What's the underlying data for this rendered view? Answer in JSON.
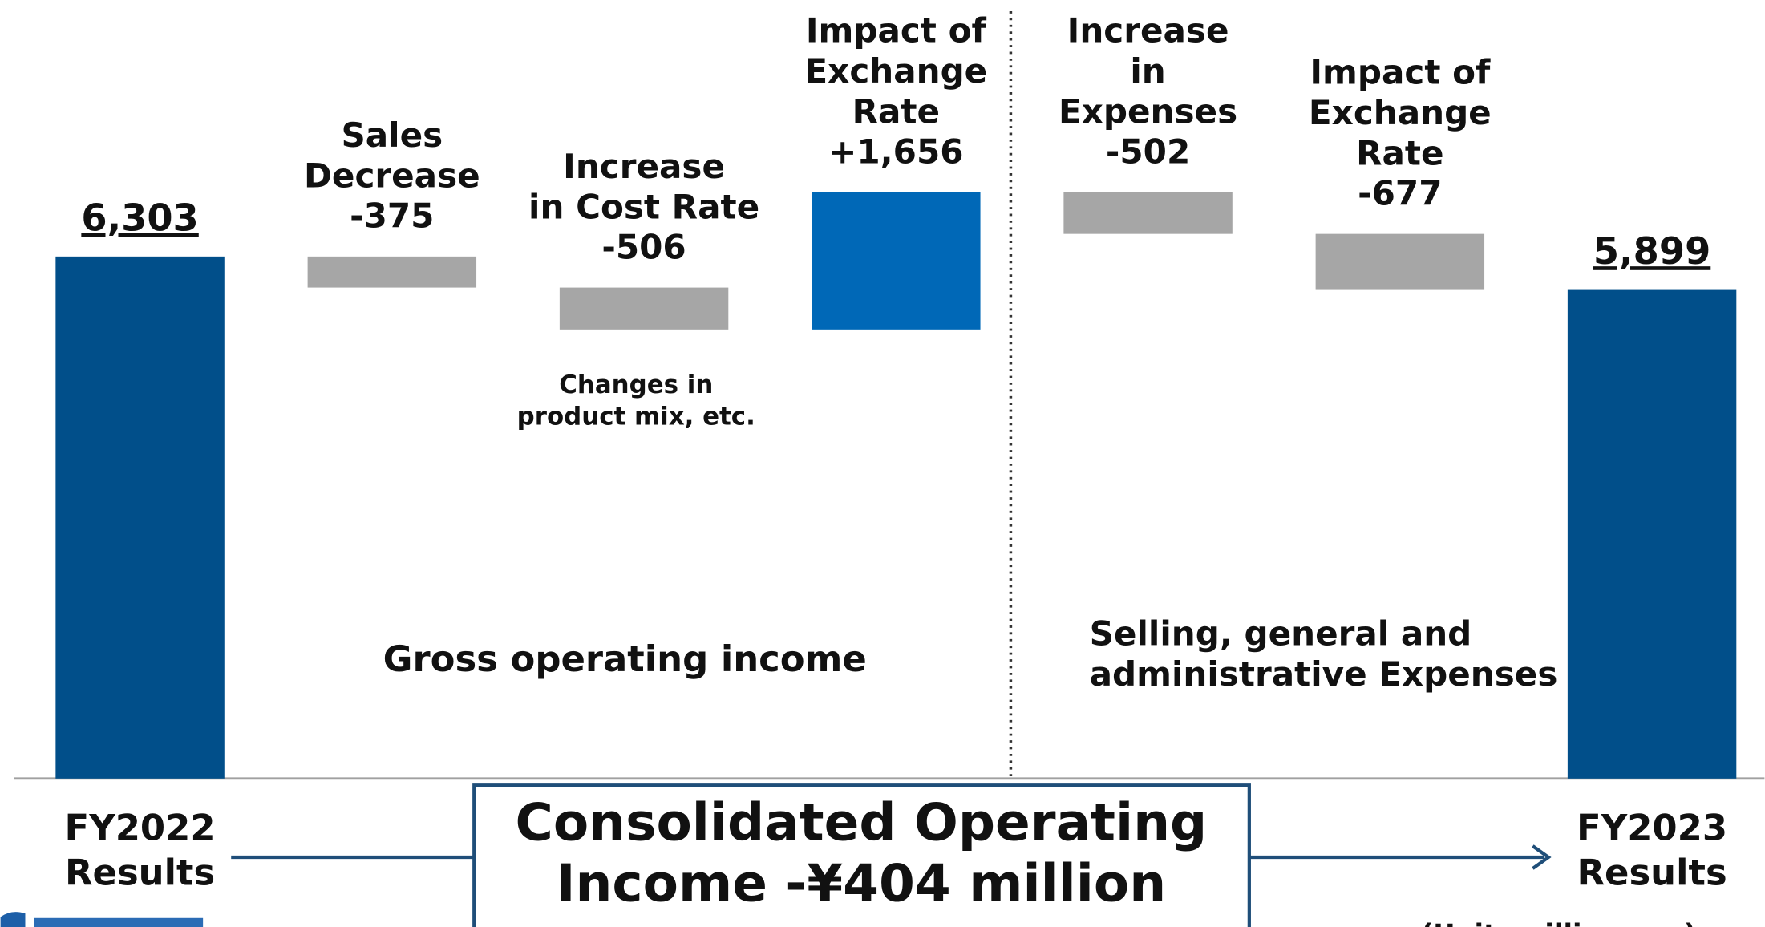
{
  "chart_data": {
    "type": "waterfall",
    "categories": [
      "FY2022\nResults",
      "Sales\nDecrease",
      "Increase\nin Cost Rate",
      "Impact of\nExchange\nRate",
      "Increase\nin\nExpenses",
      "Impact of\nExchange\nRate",
      "FY2023\nResults"
    ],
    "values": [
      6303,
      -375,
      -506,
      1656,
      -502,
      -677,
      5899
    ],
    "value_labels": [
      "6,303",
      "-375",
      "-506",
      "+1,656",
      "-502",
      "-677",
      "5,899"
    ],
    "measure": [
      "total",
      "relative",
      "relative",
      "relative",
      "relative",
      "relative",
      "total"
    ],
    "colors": {
      "total": "#014f8a",
      "decrease": "#a6a6a6",
      "increase": "#0068b7"
    },
    "ylim": [
      0,
      9400
    ],
    "annotations": {
      "cost_note": "Changes in\nproduct mix, etc.",
      "gross": "Gross operating income",
      "sga": "Selling, general and\nadministrative Expenses",
      "summary": "Consolidated Operating\nIncome -¥404 million",
      "unit": "(Unit: million yen)"
    }
  }
}
